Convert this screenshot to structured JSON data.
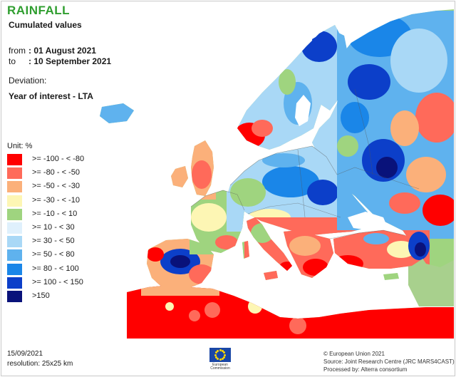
{
  "header": {
    "title": "RAINFALL",
    "subtitle": "Cumulated values",
    "from_label": "from",
    "from_value": ": 01 August 2021",
    "to_label": "to",
    "to_value": ": 10 September 2021",
    "deviation_label": "Deviation:",
    "comparison": "Year of interest - LTA"
  },
  "legend": {
    "unit": "Unit:  %",
    "classes": [
      {
        "label": ">= -100 - < -80",
        "color": "#ff0000"
      },
      {
        "label": ">= -80 - < -50",
        "color": "#ff6a5a"
      },
      {
        "label": ">= -50 - < -30",
        "color": "#fbb07a"
      },
      {
        "label": ">= -30 - < -10",
        "color": "#fdf6b4"
      },
      {
        "label": ">= -10 - < 10",
        "color": "#9fd47f"
      },
      {
        "label": ">= 10 - < 30",
        "color": "#dff0fc"
      },
      {
        "label": ">= 30 - < 50",
        "color": "#a9d8f6"
      },
      {
        "label": ">= 50 - < 80",
        "color": "#5fb2ee"
      },
      {
        "label": ">= 80 - < 100",
        "color": "#1a86e8"
      },
      {
        "label": ">= 100 - < 150",
        "color": "#0c3fc9"
      },
      {
        "label": ">150",
        "color": "#09127a"
      }
    ]
  },
  "footer": {
    "date": "15/09/2021",
    "resolution": "resolution: 25x25 km",
    "logo_caption_1": "European",
    "logo_caption_2": "Commission",
    "copyright": "© European Union 2021",
    "source": "Source: Joint Research Centre (JRC MARS4CAST)",
    "processed": "Processed by: Alterra consortium"
  },
  "colors": {
    "title": "#2f9e2f",
    "sea": "#ffffff",
    "outside_region": "#a8d08d",
    "borders": "#555555"
  }
}
